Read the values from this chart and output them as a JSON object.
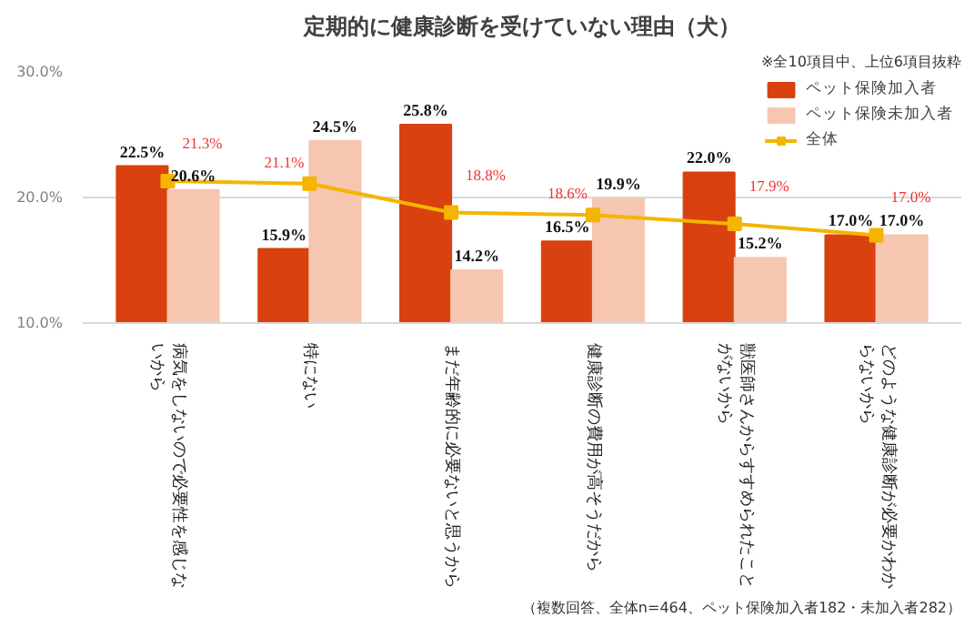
{
  "chart_data": {
    "type": "bar",
    "title": "定期的に健康診断を受けていない理由（犬）",
    "categories": [
      "病気をしないので必要性を感じないから",
      "特にない",
      "まだ年齢的に必要ないと思うから",
      "健康診断の費用が高そうだから",
      "獣医師さんからすすめられたことがないから",
      "どのような健康診断が必要かわからないから"
    ],
    "series": [
      {
        "name": "ペット保険加入者",
        "color": "#d9410f",
        "values": [
          22.5,
          15.9,
          25.8,
          16.5,
          22.0,
          17.0
        ],
        "value_labels": [
          "22.5%",
          "15.9%",
          "25.8%",
          "16.5%",
          "22.0%",
          "17.0%"
        ]
      },
      {
        "name": "ペット保険未加入者",
        "color": "#f7c6b0",
        "values": [
          20.6,
          24.5,
          14.2,
          19.9,
          15.2,
          17.0
        ],
        "value_labels": [
          "20.6%",
          "24.5%",
          "14.2%",
          "19.9%",
          "15.2%",
          "17.0%"
        ]
      },
      {
        "name": "全体",
        "type": "line",
        "color": "#f5b400",
        "marker": "square",
        "values": [
          21.3,
          21.1,
          18.8,
          18.6,
          17.9,
          17.0
        ],
        "value_labels": [
          "21.3%",
          "21.1%",
          "18.8%",
          "18.6%",
          "17.9%",
          "17.0%"
        ]
      }
    ],
    "ylim": [
      10,
      30
    ],
    "yticks": [
      {
        "value": 10,
        "label": "10.0%"
      },
      {
        "value": 20,
        "label": "20.0%"
      },
      {
        "value": 30,
        "label": "30.0%"
      }
    ],
    "grid": "y",
    "legend": "top right",
    "annotations": [
      "※全10項目中、上位6項目抜粋",
      "（複数回答、全体n=464、ペット保険加入者182・未加入者282）"
    ]
  }
}
